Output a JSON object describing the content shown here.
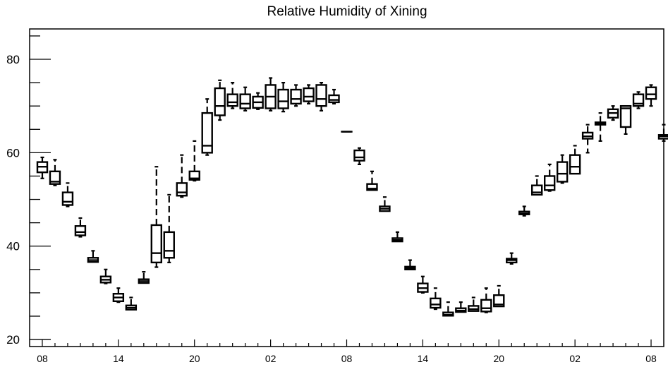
{
  "chart_data": {
    "type": "box",
    "title": "Relative Humidity of Xining",
    "xlabel": "",
    "ylabel": "",
    "ylim": [
      18.5,
      86.5
    ],
    "y_ticks": [
      20,
      40,
      60,
      80
    ],
    "x_tick_labels": [
      "08",
      "14",
      "20",
      "02",
      "08",
      "14",
      "20",
      "02",
      "08"
    ],
    "x_tick_hours": [
      0,
      6,
      12,
      18,
      24,
      30,
      36,
      42,
      48
    ],
    "x_range_hours": [
      -1,
      49
    ],
    "grid": false,
    "boxes": [
      {
        "hour": 0,
        "whisker_low": 54.5,
        "q1": 55.8,
        "median": 57.0,
        "q3": 58.0,
        "whisker_high": 59.0
      },
      {
        "hour": 1,
        "whisker_low": 53.0,
        "q1": 53.3,
        "median": 53.8,
        "q3": 56.0,
        "whisker_high": 58.5
      },
      {
        "hour": 2,
        "whisker_low": 48.5,
        "q1": 48.8,
        "median": 49.5,
        "q3": 51.5,
        "whisker_high": 53.5
      },
      {
        "hour": 3,
        "whisker_low": 42.0,
        "q1": 42.3,
        "median": 43.0,
        "q3": 44.3,
        "whisker_high": 46.0
      },
      {
        "hour": 4,
        "whisker_low": 36.5,
        "q1": 36.6,
        "median": 37.0,
        "q3": 37.5,
        "whisker_high": 39.0
      },
      {
        "hour": 5,
        "whisker_low": 32.0,
        "q1": 32.2,
        "median": 32.8,
        "q3": 33.5,
        "whisker_high": 35.0
      },
      {
        "hour": 6,
        "whisker_low": 28.0,
        "q1": 28.2,
        "median": 29.0,
        "q3": 29.8,
        "whisker_high": 31.0
      },
      {
        "hour": 7,
        "whisker_low": 26.3,
        "q1": 26.4,
        "median": 26.8,
        "q3": 27.3,
        "whisker_high": 29.0
      },
      {
        "hour": 8,
        "whisker_low": 32.0,
        "q1": 32.1,
        "median": 32.5,
        "q3": 32.9,
        "whisker_high": 34.5
      },
      {
        "hour": 9,
        "whisker_low": 35.5,
        "q1": 36.5,
        "median": 38.5,
        "q3": 44.5,
        "whisker_high": 57.0
      },
      {
        "hour": 10,
        "whisker_low": 36.5,
        "q1": 37.5,
        "median": 39.0,
        "q3": 43.0,
        "whisker_high": 51.0
      },
      {
        "hour": 11,
        "whisker_low": 50.5,
        "q1": 50.8,
        "median": 51.5,
        "q3": 53.5,
        "whisker_high": 59.5
      },
      {
        "hour": 12,
        "whisker_low": 54.0,
        "q1": 54.2,
        "median": 54.5,
        "q3": 56.0,
        "whisker_high": 62.5
      },
      {
        "hour": 13,
        "whisker_low": 59.5,
        "q1": 60.0,
        "median": 61.5,
        "q3": 68.5,
        "whisker_high": 71.5
      },
      {
        "hour": 14,
        "whisker_low": 67.0,
        "q1": 68.0,
        "median": 70.0,
        "q3": 73.8,
        "whisker_high": 75.5
      },
      {
        "hour": 15,
        "whisker_low": 69.5,
        "q1": 70.0,
        "median": 70.8,
        "q3": 72.5,
        "whisker_high": 75.0
      },
      {
        "hour": 16,
        "whisker_low": 69.0,
        "q1": 69.5,
        "median": 70.5,
        "q3": 72.5,
        "whisker_high": 74.0
      },
      {
        "hour": 17,
        "whisker_low": 69.3,
        "q1": 69.6,
        "median": 70.8,
        "q3": 72.0,
        "whisker_high": 72.8
      },
      {
        "hour": 18,
        "whisker_low": 69.0,
        "q1": 69.5,
        "median": 72.0,
        "q3": 74.5,
        "whisker_high": 76.0
      },
      {
        "hour": 19,
        "whisker_low": 68.8,
        "q1": 69.5,
        "median": 71.0,
        "q3": 73.5,
        "whisker_high": 75.0
      },
      {
        "hour": 20,
        "whisker_low": 70.0,
        "q1": 70.5,
        "median": 71.5,
        "q3": 73.5,
        "whisker_high": 74.5
      },
      {
        "hour": 21,
        "whisker_low": 70.5,
        "q1": 71.0,
        "median": 72.0,
        "q3": 73.8,
        "whisker_high": 74.5
      },
      {
        "hour": 22,
        "whisker_low": 69.0,
        "q1": 70.0,
        "median": 71.5,
        "q3": 74.5,
        "whisker_high": 75.0
      },
      {
        "hour": 23,
        "whisker_low": 70.5,
        "q1": 70.8,
        "median": 71.3,
        "q3": 72.3,
        "whisker_high": 73.5
      },
      {
        "hour": 24,
        "whisker_low": 64.5,
        "q1": 64.5,
        "median": 64.5,
        "q3": 64.5,
        "whisker_high": 64.5
      },
      {
        "hour": 25,
        "whisker_low": 57.5,
        "q1": 58.3,
        "median": 59.0,
        "q3": 60.5,
        "whisker_high": 61.0
      },
      {
        "hour": 26,
        "whisker_low": 52.0,
        "q1": 52.0,
        "median": 52.3,
        "q3": 53.3,
        "whisker_high": 56.0
      },
      {
        "hour": 27,
        "whisker_low": 47.5,
        "q1": 47.5,
        "median": 48.0,
        "q3": 48.5,
        "whisker_high": 50.5
      },
      {
        "hour": 28,
        "whisker_low": 41.0,
        "q1": 41.0,
        "median": 41.3,
        "q3": 41.7,
        "whisker_high": 43.0
      },
      {
        "hour": 29,
        "whisker_low": 35.0,
        "q1": 35.0,
        "median": 35.3,
        "q3": 35.6,
        "whisker_high": 37.0
      },
      {
        "hour": 30,
        "whisker_low": 30.0,
        "q1": 30.2,
        "median": 31.0,
        "q3": 32.0,
        "whisker_high": 33.5
      },
      {
        "hour": 31,
        "whisker_low": 26.5,
        "q1": 26.8,
        "median": 27.5,
        "q3": 28.8,
        "whisker_high": 31.0
      },
      {
        "hour": 32,
        "whisker_low": 25.0,
        "q1": 25.1,
        "median": 25.3,
        "q3": 25.8,
        "whisker_high": 28.0
      },
      {
        "hour": 33,
        "whisker_low": 25.8,
        "q1": 25.9,
        "median": 26.2,
        "q3": 26.7,
        "whisker_high": 28.0
      },
      {
        "hour": 34,
        "whisker_low": 26.0,
        "q1": 26.1,
        "median": 26.5,
        "q3": 27.2,
        "whisker_high": 29.0
      },
      {
        "hour": 35,
        "whisker_low": 25.8,
        "q1": 26.0,
        "median": 26.7,
        "q3": 28.5,
        "whisker_high": 31.0
      },
      {
        "hour": 36,
        "whisker_low": 27.0,
        "q1": 27.1,
        "median": 27.5,
        "q3": 29.5,
        "whisker_high": 31.5
      },
      {
        "hour": 37,
        "whisker_low": 36.2,
        "q1": 36.5,
        "median": 37.0,
        "q3": 37.3,
        "whisker_high": 38.5
      },
      {
        "hour": 38,
        "whisker_low": 46.5,
        "q1": 46.8,
        "median": 47.0,
        "q3": 47.4,
        "whisker_high": 48.5
      },
      {
        "hour": 39,
        "whisker_low": 51.0,
        "q1": 51.0,
        "median": 51.5,
        "q3": 53.0,
        "whisker_high": 55.0
      },
      {
        "hour": 40,
        "whisker_low": 51.8,
        "q1": 52.0,
        "median": 53.0,
        "q3": 55.0,
        "whisker_high": 57.5
      },
      {
        "hour": 41,
        "whisker_low": 53.5,
        "q1": 53.8,
        "median": 55.5,
        "q3": 58.0,
        "whisker_high": 59.5
      },
      {
        "hour": 42,
        "whisker_low": 55.5,
        "q1": 55.5,
        "median": 57.0,
        "q3": 59.5,
        "whisker_high": 61.5
      },
      {
        "hour": 43,
        "whisker_low": 60.0,
        "q1": 63.0,
        "median": 63.5,
        "q3": 64.3,
        "whisker_high": 66.0
      },
      {
        "hour": 44,
        "whisker_low": 62.5,
        "q1": 66.0,
        "median": 66.2,
        "q3": 66.5,
        "whisker_high": 68.5
      },
      {
        "hour": 45,
        "whisker_low": 67.0,
        "q1": 67.5,
        "median": 68.5,
        "q3": 69.3,
        "whisker_high": 70.0
      },
      {
        "hour": 46,
        "whisker_low": 64.0,
        "q1": 65.5,
        "median": 69.5,
        "q3": 70.0,
        "whisker_high": 70.0
      },
      {
        "hour": 47,
        "whisker_low": 69.5,
        "q1": 70.0,
        "median": 70.5,
        "q3": 72.5,
        "whisker_high": 73.0
      },
      {
        "hour": 48,
        "whisker_low": 70.0,
        "q1": 71.5,
        "median": 72.5,
        "q3": 74.0,
        "whisker_high": 74.5
      },
      {
        "hour": 49,
        "whisker_low": 62.5,
        "q1": 63.0,
        "median": 63.5,
        "q3": 63.8,
        "whisker_high": 66.0
      }
    ]
  }
}
